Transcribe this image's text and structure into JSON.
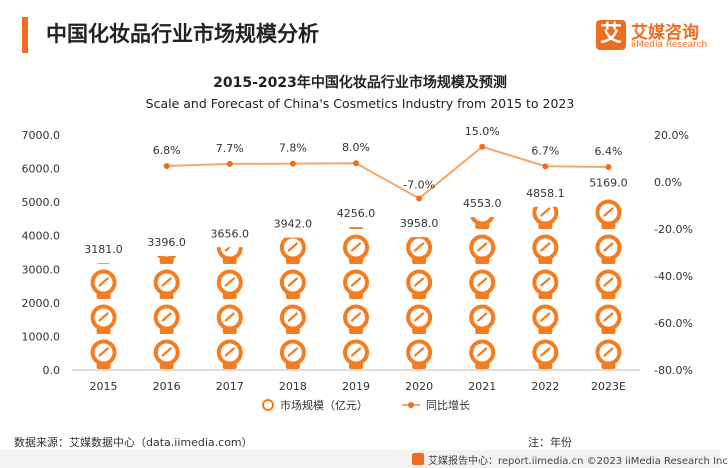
{
  "header": {
    "title": "中国化妆品行业市场规模分析",
    "logo_mark": "艾",
    "logo_cn": "艾媒咨询",
    "logo_en": "iiMedia Research"
  },
  "chart_data": {
    "type": "bar",
    "title": "2015-2023年中国化妆品行业市场规模及预测",
    "subtitle": "Scale and Forecast of China's Cosmetics Industry from 2015 to 2023",
    "categories": [
      "2015",
      "2016",
      "2017",
      "2018",
      "2019",
      "2020",
      "2021",
      "2022",
      "2023E"
    ],
    "series": [
      {
        "name": "市场规模（亿元）",
        "type": "bar",
        "axis": "left",
        "values": [
          3181.0,
          3396.0,
          3656.0,
          3942.0,
          4256.0,
          3958.0,
          4553.0,
          4858.1,
          5169.0
        ],
        "labels": [
          "3181.0",
          "3396.0",
          "3656.0",
          "3942.0",
          "4256.0",
          "3958.0",
          "4553.0",
          "4858.1",
          "5169.0"
        ]
      },
      {
        "name": "同比增长",
        "type": "line",
        "axis": "right",
        "values": [
          null,
          6.8,
          7.7,
          7.8,
          8.0,
          -7.0,
          15.0,
          6.7,
          6.4
        ],
        "labels": [
          "",
          "6.8%",
          "7.7%",
          "7.8%",
          "8.0%",
          "-7.0%",
          "15.0%",
          "6.7%",
          "6.4%"
        ]
      }
    ],
    "yleft": {
      "ylim": [
        0,
        7000
      ],
      "ticks": [
        "0.0",
        "1000.0",
        "2000.0",
        "3000.0",
        "4000.0",
        "5000.0",
        "6000.0",
        "7000.0"
      ]
    },
    "yright": {
      "ylim": [
        -80,
        20
      ],
      "ticks": [
        "-80.0%",
        "-60.0%",
        "-40.0%",
        "-20.0%",
        "0.0%",
        "20.0%"
      ]
    },
    "legend_position": "bottom-center",
    "grid": false,
    "colors": {
      "bar": "#f57c20",
      "line": "#f5a86a",
      "marker": "#f06d1f"
    }
  },
  "footer": {
    "source": "数据来源：艾媒数据中心（data.iimedia.com）",
    "note": "注：年份",
    "bar_text": "艾媒报告中心：report.iimedia.cn  ©2023  iiMedia Research  Inc"
  }
}
